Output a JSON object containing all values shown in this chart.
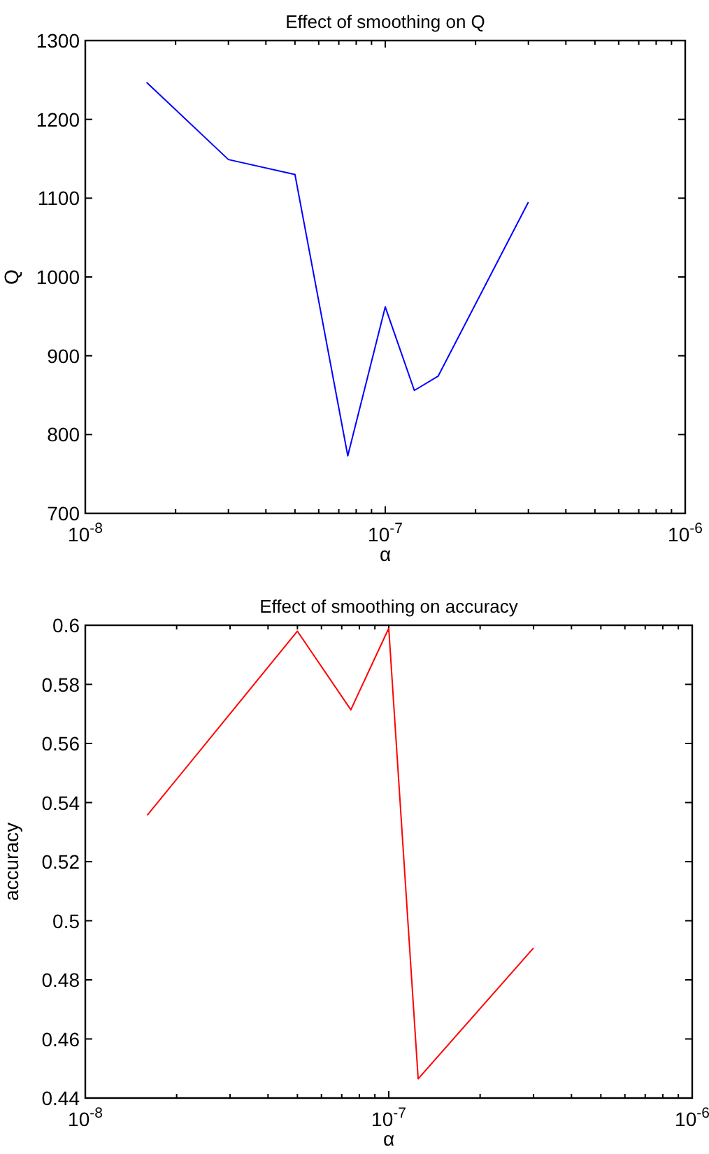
{
  "chart_data": [
    {
      "type": "line",
      "title": "Effect of smoothing on Q",
      "xlabel": "α",
      "ylabel": "Q",
      "log": "x",
      "grid": false,
      "x": [
        1.6e-08,
        3e-08,
        5e-08,
        7.5e-08,
        1e-07,
        1.25e-07,
        1.5e-07,
        3e-07
      ],
      "series": [
        {
          "color": "#0000ff",
          "values": [
            1247,
            1149,
            1130,
            773,
            962,
            856,
            874,
            1095
          ]
        }
      ],
      "xlim": [
        1e-08,
        1e-06
      ],
      "xticks": [
        {
          "value": 1e-08,
          "label": "10$^{-8}$"
        },
        {
          "value": 2e-08,
          "label": null
        },
        {
          "value": 3e-08,
          "label": null
        },
        {
          "value": 4e-08,
          "label": null
        },
        {
          "value": 5e-08,
          "label": null
        },
        {
          "value": 6e-08,
          "label": null
        },
        {
          "value": 7e-08,
          "label": null
        },
        {
          "value": 8e-08,
          "label": null
        },
        {
          "value": 9e-08,
          "label": null
        },
        {
          "value": 1e-07,
          "label": "10$^{-7}$"
        },
        {
          "value": 2e-07,
          "label": null
        },
        {
          "value": 3e-07,
          "label": null
        },
        {
          "value": 4e-07,
          "label": null
        },
        {
          "value": 5e-07,
          "label": null
        },
        {
          "value": 6e-07,
          "label": null
        },
        {
          "value": 7e-07,
          "label": null
        },
        {
          "value": 8e-07,
          "label": null
        },
        {
          "value": 9e-07,
          "label": null
        },
        {
          "value": 1e-06,
          "label": "10$^{-6}$"
        }
      ],
      "ylim": [
        700,
        1300
      ],
      "yticks": [
        700,
        800,
        900,
        1000,
        1100,
        1200,
        1300
      ]
    },
    {
      "type": "line",
      "title": "Effect of smoothing on accuracy",
      "xlabel": "α",
      "ylabel": "accuracy",
      "log": "x",
      "grid": false,
      "x": [
        1.6e-08,
        5e-08,
        7.5e-08,
        1e-07,
        1.25e-07,
        3e-07
      ],
      "series": [
        {
          "color": "#ff0000",
          "values": [
            0.5357,
            0.598,
            0.5714,
            0.599,
            0.4465,
            0.4908
          ]
        }
      ],
      "xlim": [
        1e-08,
        1e-06
      ],
      "xticks": [
        {
          "value": 1e-08,
          "label": "10$^{-8}$"
        },
        {
          "value": 2e-08,
          "label": null
        },
        {
          "value": 3e-08,
          "label": null
        },
        {
          "value": 4e-08,
          "label": null
        },
        {
          "value": 5e-08,
          "label": null
        },
        {
          "value": 6e-08,
          "label": null
        },
        {
          "value": 7e-08,
          "label": null
        },
        {
          "value": 8e-08,
          "label": null
        },
        {
          "value": 9e-08,
          "label": null
        },
        {
          "value": 1e-07,
          "label": "10$^{-7}$"
        },
        {
          "value": 2e-07,
          "label": null
        },
        {
          "value": 3e-07,
          "label": null
        },
        {
          "value": 4e-07,
          "label": null
        },
        {
          "value": 5e-07,
          "label": null
        },
        {
          "value": 6e-07,
          "label": null
        },
        {
          "value": 7e-07,
          "label": null
        },
        {
          "value": 8e-07,
          "label": null
        },
        {
          "value": 9e-07,
          "label": null
        },
        {
          "value": 1e-06,
          "label": "10$^{-6}$"
        }
      ],
      "ylim": [
        0.44,
        0.6
      ],
      "yticks": [
        0.44,
        0.46,
        0.48,
        0.5,
        0.52,
        0.54,
        0.56,
        0.58,
        0.6
      ]
    }
  ]
}
